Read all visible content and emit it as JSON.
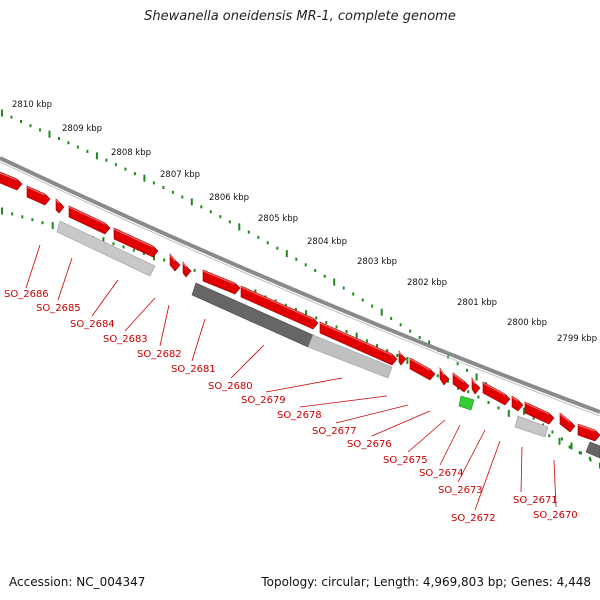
{
  "title": "Shewanella oneidensis MR-1, complete genome",
  "footer": {
    "accession": "Accession: NC_004347",
    "summary": "Topology: circular; Length: 4,969,803 bp; Genes: 4,448"
  },
  "colors": {
    "forward_gene": "#e00000",
    "forward_gene_dark": "#9a0000",
    "tick": "#1e8a1e",
    "rna_gene": "#2ecc2e",
    "backbone": "#7a7a7a",
    "label": "#cc0000",
    "track_light": "#c4c4c4",
    "track_dark": "#5a5a5a"
  },
  "scale_labels": [
    "2810 kbp",
    "2809 kbp",
    "2808 kbp",
    "2807 kbp",
    "2806 kbp",
    "2805 kbp",
    "2804 kbp",
    "2803 kbp",
    "2802 kbp",
    "2801 kbp",
    "2800 kbp",
    "2799 kbp"
  ],
  "gene_labels": [
    "SO_2686",
    "SO_2685",
    "SO_2684",
    "SO_2683",
    "SO_2682",
    "SO_2681",
    "SO_2680",
    "SO_2679",
    "SO_2678",
    "SO_2677",
    "SO_2676",
    "SO_2675",
    "SO_2674",
    "SO_2673",
    "SO_2672",
    "SO_2671",
    "SO_2670"
  ]
}
